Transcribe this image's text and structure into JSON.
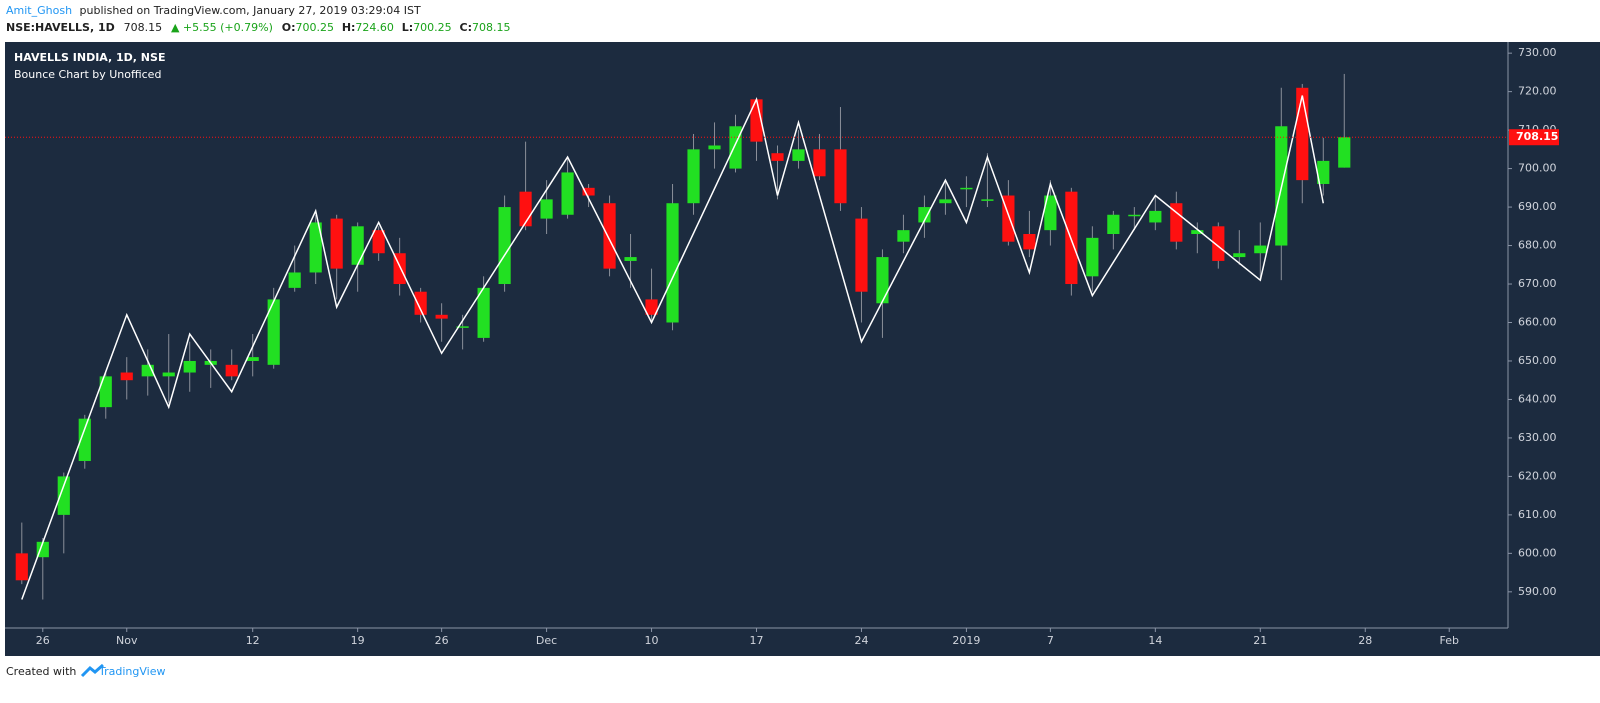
{
  "header": {
    "author": "Amit_Ghosh",
    "published": "published on TradingView.com, January 27, 2019 03:29:04 IST",
    "symbol": "NSE:HAVELLS, 1D",
    "price": "708.15",
    "change": "▲ +5.55 (+0.79%)",
    "ohlc": [
      {
        "label": "O:",
        "value": "700.25"
      },
      {
        "label": "H:",
        "value": "724.60"
      },
      {
        "label": "L:",
        "value": "700.25"
      },
      {
        "label": "C:",
        "value": "708.15"
      }
    ]
  },
  "chart_data": {
    "type": "candlestick",
    "title": "HAVELLS INDIA, 1D, NSE",
    "subtitle": "Bounce Chart by Unofficed",
    "up_color": "#22e022",
    "down_color": "#ff1010",
    "wick_color": "#8a8f99",
    "open": [
      600,
      599,
      610,
      624,
      638,
      647,
      646,
      646,
      647,
      649,
      649,
      650,
      649,
      669,
      673,
      687,
      675,
      684,
      678,
      668,
      662,
      659,
      656,
      670,
      694,
      687,
      688,
      695,
      691,
      676,
      666,
      660,
      691,
      705,
      700,
      718,
      704,
      702,
      705,
      705,
      687,
      665,
      681,
      686,
      691,
      695,
      692,
      693,
      683,
      684,
      694,
      672,
      683,
      688,
      686,
      691,
      683,
      685,
      677,
      678,
      680,
      721,
      696,
      700.25
    ],
    "high": [
      608,
      604,
      621,
      636,
      647,
      651,
      653,
      657,
      655,
      653,
      653,
      657,
      669,
      680,
      688,
      688,
      686,
      685,
      682,
      669,
      665,
      662,
      672,
      693,
      707,
      697,
      703,
      696,
      693,
      683,
      674,
      696,
      709,
      712,
      714,
      718,
      706,
      710,
      709,
      716,
      690,
      679,
      688,
      693,
      697,
      698,
      704,
      697,
      689,
      697,
      695,
      685,
      689,
      690,
      693,
      694,
      686,
      686,
      684,
      686,
      721,
      722,
      708,
      724.6
    ],
    "low": [
      592,
      588,
      600,
      622,
      635,
      640,
      641,
      639,
      642,
      643,
      645,
      646,
      648,
      668,
      670,
      666,
      668,
      676,
      667,
      660,
      655,
      653,
      655,
      668,
      684,
      683,
      687,
      690,
      672,
      669,
      660,
      658,
      688,
      700,
      699,
      702,
      692,
      700,
      697,
      689,
      660,
      656,
      678,
      682,
      688,
      690,
      690,
      680,
      677,
      680,
      667,
      668,
      679,
      684,
      684,
      679,
      678,
      674,
      675,
      671,
      671,
      691,
      693,
      700.25
    ],
    "close": [
      593,
      603,
      620,
      635,
      646,
      645,
      649,
      647,
      650,
      650,
      646,
      651,
      666,
      673,
      686,
      674,
      685,
      678,
      670,
      662,
      661,
      659,
      669,
      690,
      685,
      692,
      699,
      693,
      674,
      677,
      662,
      691,
      705,
      706,
      711,
      707,
      702,
      705,
      698,
      691,
      668,
      677,
      684,
      690,
      692,
      695,
      692,
      681,
      679,
      693,
      670,
      682,
      688,
      688,
      689,
      681,
      684,
      676,
      678,
      680,
      711,
      697,
      702,
      708.15
    ],
    "zigzag": {
      "color": "#ffffff",
      "x": [
        0,
        5,
        7,
        8,
        10,
        14,
        15,
        17,
        20,
        26,
        30,
        35,
        36,
        37,
        40,
        44,
        45,
        46,
        48,
        49,
        51,
        54,
        59,
        61,
        62
      ],
      "values": [
        588,
        662,
        638,
        657,
        642,
        689,
        664,
        686,
        652,
        703,
        660,
        718,
        693,
        712,
        655,
        697,
        686,
        703,
        673,
        696,
        667,
        693,
        671,
        719,
        691
      ]
    },
    "last_price": 708.15,
    "last_price_label": "708.15",
    "last_price_color": "#ff1010",
    "ylim": [
      580.6,
      732.9
    ],
    "yticks": [
      {
        "value": 590,
        "label": "590.00"
      },
      {
        "value": 600,
        "label": "600.00"
      },
      {
        "value": 610,
        "label": "610.00"
      },
      {
        "value": 620,
        "label": "620.00"
      },
      {
        "value": 630,
        "label": "630.00"
      },
      {
        "value": 640,
        "label": "640.00"
      },
      {
        "value": 650,
        "label": "650.00"
      },
      {
        "value": 660,
        "label": "660.00"
      },
      {
        "value": 670,
        "label": "670.00"
      },
      {
        "value": 680,
        "label": "680.00"
      },
      {
        "value": 690,
        "label": "690.00"
      },
      {
        "value": 700,
        "label": "700.00"
      },
      {
        "value": 710,
        "label": "710.00"
      },
      {
        "value": 720,
        "label": "720.00"
      },
      {
        "value": 730,
        "label": "730.00"
      }
    ],
    "xlim": [
      -0.8,
      70.8
    ],
    "xticks": [
      {
        "value": 1,
        "label": "26"
      },
      {
        "value": 5,
        "label": "Nov"
      },
      {
        "value": 11,
        "label": "12"
      },
      {
        "value": 16,
        "label": "19"
      },
      {
        "value": 20,
        "label": "26"
      },
      {
        "value": 25,
        "label": "Dec"
      },
      {
        "value": 30,
        "label": "10"
      },
      {
        "value": 35,
        "label": "17"
      },
      {
        "value": 40,
        "label": "24"
      },
      {
        "value": 45,
        "label": "2019"
      },
      {
        "value": 49,
        "label": "7"
      },
      {
        "value": 54,
        "label": "14"
      },
      {
        "value": 59,
        "label": "21"
      },
      {
        "value": 64,
        "label": "28"
      },
      {
        "value": 68,
        "label": "Feb"
      }
    ]
  },
  "footer": {
    "created": "Created with",
    "brand": "TradingView"
  }
}
